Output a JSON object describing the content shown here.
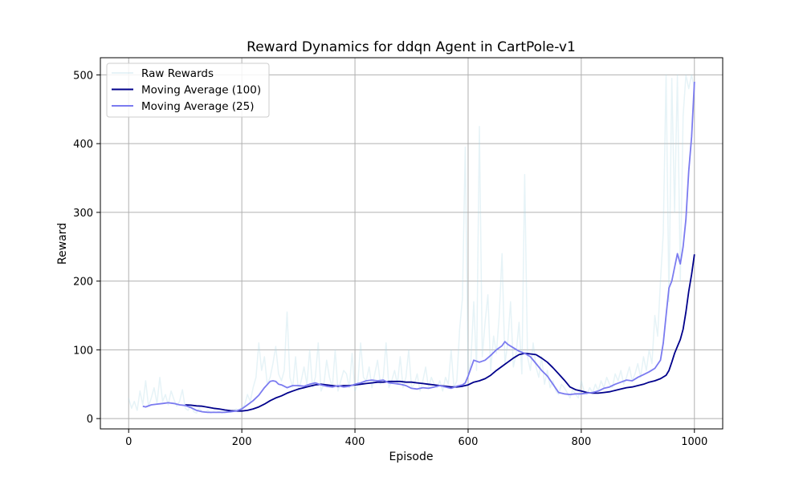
{
  "chart_data": {
    "type": "line",
    "title": "Reward Dynamics for ddqn Agent in CartPole-v1",
    "xlabel": "Episode",
    "ylabel": "Reward",
    "xlim": [
      -50,
      1050
    ],
    "ylim": [
      -15,
      525
    ],
    "xticks": [
      0,
      200,
      400,
      600,
      800,
      1000
    ],
    "yticks": [
      0,
      100,
      200,
      300,
      400,
      500
    ],
    "grid": true,
    "legend_position": "upper-left",
    "series": [
      {
        "name": "Raw Rewards",
        "color": "#add8e6",
        "opacity": 0.3,
        "x": [
          0,
          5,
          10,
          15,
          20,
          25,
          30,
          35,
          40,
          45,
          50,
          55,
          60,
          65,
          70,
          75,
          80,
          85,
          90,
          95,
          100,
          105,
          110,
          115,
          120,
          125,
          130,
          135,
          140,
          145,
          150,
          155,
          160,
          165,
          170,
          175,
          180,
          185,
          190,
          195,
          200,
          205,
          210,
          215,
          220,
          225,
          230,
          235,
          240,
          245,
          250,
          255,
          260,
          265,
          270,
          275,
          280,
          285,
          290,
          295,
          300,
          305,
          310,
          315,
          320,
          325,
          330,
          335,
          340,
          345,
          350,
          355,
          360,
          365,
          370,
          375,
          380,
          385,
          390,
          395,
          400,
          405,
          410,
          415,
          420,
          425,
          430,
          435,
          440,
          445,
          450,
          455,
          460,
          465,
          470,
          475,
          480,
          485,
          490,
          495,
          500,
          505,
          510,
          515,
          520,
          525,
          530,
          535,
          540,
          545,
          550,
          555,
          560,
          565,
          570,
          575,
          580,
          585,
          590,
          595,
          600,
          605,
          610,
          615,
          620,
          625,
          630,
          635,
          640,
          645,
          650,
          655,
          660,
          665,
          670,
          675,
          680,
          685,
          690,
          695,
          700,
          705,
          710,
          715,
          720,
          725,
          730,
          735,
          740,
          745,
          750,
          755,
          760,
          765,
          770,
          775,
          780,
          785,
          790,
          795,
          800,
          805,
          810,
          815,
          820,
          825,
          830,
          835,
          840,
          845,
          850,
          855,
          860,
          865,
          870,
          875,
          880,
          885,
          890,
          895,
          900,
          905,
          910,
          915,
          920,
          925,
          930,
          935,
          940,
          945,
          950,
          955,
          960,
          965,
          970,
          975,
          980,
          985,
          990,
          995,
          1000
        ],
        "values": [
          30,
          15,
          25,
          12,
          40,
          20,
          55,
          18,
          30,
          45,
          22,
          60,
          25,
          35,
          20,
          40,
          28,
          18,
          25,
          42,
          15,
          12,
          20,
          10,
          8,
          15,
          10,
          9,
          12,
          8,
          10,
          9,
          11,
          8,
          12,
          10,
          9,
          11,
          14,
          12,
          16,
          20,
          35,
          25,
          45,
          60,
          110,
          70,
          90,
          50,
          60,
          80,
          105,
          65,
          55,
          70,
          155,
          60,
          45,
          90,
          40,
          55,
          75,
          50,
          100,
          45,
          60,
          110,
          40,
          50,
          85,
          60,
          45,
          100,
          40,
          55,
          70,
          65,
          45,
          95,
          40,
          50,
          110,
          60,
          55,
          75,
          45,
          65,
          85,
          50,
          60,
          110,
          45,
          55,
          70,
          50,
          90,
          45,
          60,
          100,
          45,
          50,
          65,
          40,
          55,
          75,
          45,
          60,
          50,
          45,
          55,
          40,
          60,
          50,
          100,
          45,
          55,
          130,
          175,
          395,
          60,
          85,
          170,
          70,
          425,
          90,
          140,
          180,
          70,
          120,
          95,
          150,
          240,
          80,
          110,
          170,
          75,
          95,
          140,
          65,
          355,
          90,
          70,
          110,
          75,
          60,
          90,
          50,
          70,
          45,
          55,
          40,
          35,
          50,
          45,
          38,
          30,
          42,
          35,
          30,
          55,
          40,
          35,
          45,
          38,
          50,
          40,
          55,
          45,
          60,
          50,
          45,
          65,
          55,
          70,
          50,
          60,
          75,
          55,
          65,
          80,
          60,
          90,
          70,
          100,
          80,
          150,
          120,
          200,
          270,
          500,
          170,
          495,
          300,
          500,
          200,
          440,
          500,
          480,
          500,
          480
        ]
      },
      {
        "name": "Moving Average (100)",
        "color": "#00008b",
        "x": [
          100,
          110,
          120,
          130,
          140,
          150,
          160,
          170,
          180,
          190,
          200,
          210,
          220,
          230,
          240,
          250,
          260,
          270,
          280,
          290,
          300,
          310,
          320,
          330,
          340,
          350,
          360,
          370,
          380,
          390,
          400,
          410,
          420,
          430,
          440,
          450,
          460,
          470,
          480,
          490,
          500,
          510,
          520,
          530,
          540,
          550,
          560,
          570,
          580,
          590,
          600,
          610,
          620,
          630,
          640,
          650,
          660,
          670,
          680,
          690,
          700,
          710,
          720,
          730,
          740,
          750,
          760,
          770,
          780,
          790,
          800,
          810,
          820,
          830,
          840,
          850,
          860,
          870,
          880,
          890,
          900,
          910,
          920,
          930,
          940,
          950,
          955,
          960,
          965,
          970,
          975,
          980,
          985,
          990,
          995,
          1000
        ],
        "values": [
          20,
          19.5,
          18.5,
          18,
          16.5,
          15,
          14,
          12.5,
          11.5,
          11,
          11,
          12,
          14,
          17,
          21,
          26,
          30,
          33,
          37,
          40,
          43,
          45,
          47,
          49,
          50,
          49,
          48,
          47,
          48,
          48,
          49,
          50,
          51,
          52,
          53,
          53,
          54,
          54,
          54,
          53,
          53,
          52,
          51,
          50,
          49,
          48,
          47,
          46,
          46,
          47,
          49,
          53,
          55,
          58,
          63,
          70,
          76,
          82,
          88,
          93,
          95,
          94,
          93,
          88,
          82,
          74,
          65,
          56,
          46,
          42,
          40,
          38,
          37,
          37,
          38,
          39,
          41,
          43,
          45,
          46,
          48,
          50,
          53,
          55,
          58,
          63,
          70,
          82,
          95,
          105,
          115,
          130,
          155,
          185,
          210,
          239
        ]
      },
      {
        "name": "Moving Average (25)",
        "color": "#7b7bf0",
        "x": [
          25,
          30,
          40,
          50,
          60,
          70,
          80,
          90,
          100,
          110,
          120,
          130,
          140,
          150,
          160,
          170,
          180,
          190,
          200,
          210,
          220,
          230,
          240,
          250,
          255,
          260,
          265,
          270,
          280,
          290,
          300,
          310,
          320,
          330,
          340,
          350,
          360,
          370,
          380,
          390,
          400,
          410,
          420,
          430,
          440,
          450,
          460,
          470,
          480,
          490,
          500,
          510,
          520,
          530,
          540,
          550,
          560,
          570,
          580,
          590,
          595,
          600,
          610,
          620,
          630,
          640,
          650,
          660,
          665,
          670,
          680,
          690,
          700,
          710,
          720,
          730,
          740,
          750,
          760,
          770,
          780,
          790,
          800,
          810,
          820,
          830,
          840,
          850,
          860,
          870,
          880,
          890,
          900,
          910,
          920,
          930,
          940,
          945,
          950,
          955,
          960,
          965,
          970,
          975,
          980,
          985,
          990,
          995,
          1000
        ],
        "values": [
          18,
          17,
          20,
          21,
          22,
          23,
          22,
          20,
          19,
          16,
          12,
          10,
          9,
          9,
          9,
          9,
          10,
          11,
          14,
          20,
          26,
          34,
          45,
          54,
          55,
          54,
          50,
          49,
          45,
          48,
          48,
          47,
          50,
          52,
          49,
          47,
          46,
          48,
          46,
          47,
          50,
          52,
          55,
          56,
          55,
          56,
          52,
          51,
          50,
          48,
          44,
          43,
          45,
          44,
          46,
          48,
          46,
          44,
          47,
          49,
          52,
          62,
          85,
          82,
          85,
          92,
          100,
          106,
          112,
          108,
          103,
          98,
          95,
          90,
          80,
          70,
          62,
          50,
          38,
          36,
          35,
          36,
          36,
          37,
          38,
          40,
          44,
          46,
          50,
          53,
          56,
          55,
          60,
          64,
          68,
          73,
          85,
          110,
          150,
          190,
          200,
          220,
          240,
          225,
          250,
          290,
          360,
          410,
          490
        ]
      }
    ]
  }
}
